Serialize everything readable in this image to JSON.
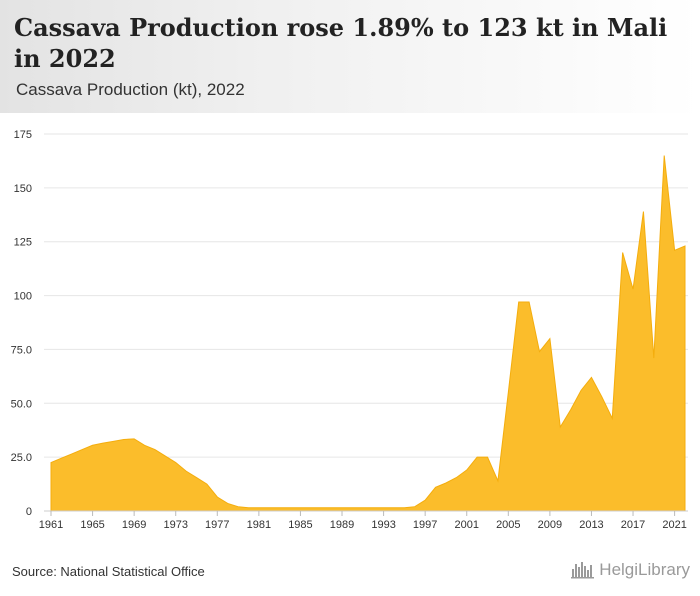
{
  "header": {
    "title": "Cassava Production rose 1.89% to 123 kt in Mali in 2022",
    "subtitle": "Cassava Production (kt), 2022"
  },
  "footer": {
    "source": "Source: National Statistical Office",
    "logo_text": "HelgiLibrary",
    "logo_icon": "city-skyline-icon"
  },
  "colors": {
    "area_fill": "#fbbd2b",
    "area_stroke": "#f4ad0d",
    "grid": "#e6e6e6",
    "axis_text": "#333333"
  },
  "chart_data": {
    "type": "area",
    "title": "Cassava Production rose 1.89% to 123 kt in Mali in 2022",
    "xlabel": "",
    "ylabel": "",
    "ylim": [
      0,
      175
    ],
    "xlim": [
      1961,
      2022
    ],
    "grid": true,
    "y_ticks": [
      "0",
      "25.0",
      "50.0",
      "75.0",
      "100",
      "125",
      "150",
      "175"
    ],
    "x_ticks": [
      "1961",
      "1965",
      "1969",
      "1973",
      "1977",
      "1981",
      "1985",
      "1989",
      "1993",
      "1997",
      "2001",
      "2005",
      "2009",
      "2013",
      "2017",
      "2021"
    ],
    "series": [
      {
        "name": "Cassava Production (kt)",
        "x": [
          1961,
          1962,
          1963,
          1964,
          1965,
          1966,
          1967,
          1968,
          1969,
          1970,
          1971,
          1972,
          1973,
          1974,
          1975,
          1976,
          1977,
          1978,
          1979,
          1980,
          1981,
          1982,
          1983,
          1984,
          1985,
          1986,
          1987,
          1988,
          1989,
          1990,
          1991,
          1992,
          1993,
          1994,
          1995,
          1996,
          1997,
          1998,
          1999,
          2000,
          2001,
          2002,
          2003,
          2004,
          2005,
          2006,
          2007,
          2008,
          2009,
          2010,
          2011,
          2012,
          2013,
          2014,
          2015,
          2016,
          2017,
          2018,
          2019,
          2020,
          2021,
          2022
        ],
        "values": [
          22.5,
          24.5,
          26.5,
          28.5,
          30.5,
          31.5,
          32.3,
          33.2,
          33.5,
          30.5,
          28.5,
          25.5,
          22.5,
          18.5,
          15.5,
          12.5,
          6.5,
          3.5,
          2.0,
          1.5,
          1.5,
          1.5,
          1.5,
          1.5,
          1.5,
          1.5,
          1.5,
          1.5,
          1.5,
          1.5,
          1.5,
          1.5,
          1.5,
          1.5,
          1.5,
          2.0,
          5.0,
          11.0,
          13.0,
          15.5,
          19.0,
          25.0,
          25.0,
          14.0,
          55.0,
          97.0,
          97.0,
          74.0,
          80.0,
          39.0,
          47.0,
          56.0,
          62.0,
          53.0,
          43.0,
          120.0,
          103.0,
          139.0,
          71.0,
          165.0,
          121.0,
          123.0
        ]
      }
    ]
  }
}
